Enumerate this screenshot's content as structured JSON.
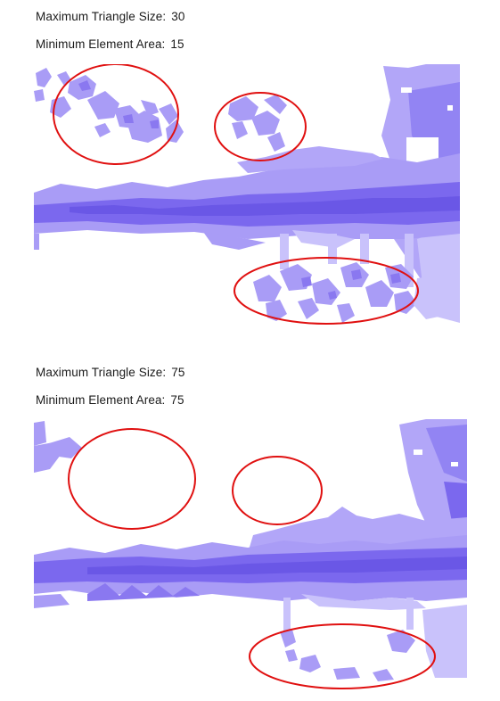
{
  "panels": [
    {
      "max_triangle": {
        "label": "Maximum Triangle Size:",
        "value": "30"
      },
      "min_area": {
        "label": "Minimum Element Area:",
        "value": "15"
      },
      "highlighted_regions": 3
    },
    {
      "max_triangle": {
        "label": "Maximum Triangle Size:",
        "value": "75"
      },
      "min_area": {
        "label": "Minimum Element Area:",
        "value": "75"
      },
      "highlighted_regions": 3
    }
  ],
  "colors": {
    "mesh_light": "#c9c2fb",
    "mesh_mid": "#a99cf6",
    "mesh_dark": "#7b68ee",
    "mesh_band": "#6a57e6",
    "annotation": "#e01010"
  }
}
